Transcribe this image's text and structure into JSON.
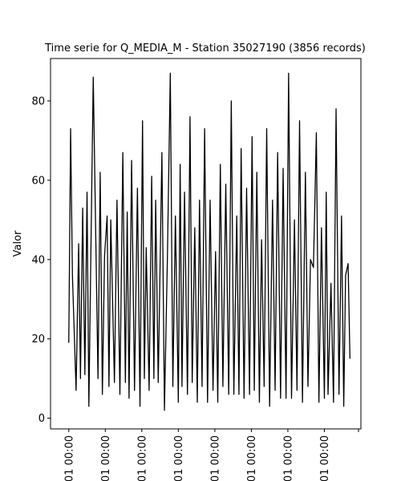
{
  "chart_data": {
    "type": "line",
    "title": "Time serie for Q_MEDIA_M - Station 35027190 (3856 records)",
    "xlabel": "",
    "ylabel": "Valor",
    "ylim": [
      -2.7,
      90.7
    ],
    "yticks": [
      0,
      20,
      40,
      60,
      80
    ],
    "xticks": [
      "01 00:00",
      "01 00:00",
      "01 00:00",
      "01 00:00",
      "01 00:00",
      "01 00:00",
      "01 00:00",
      "01 00:00"
    ],
    "xlim": [
      -0.5,
      8.0
    ],
    "grid": false,
    "series": [
      {
        "color": "#000000",
        "x": [
          0.0,
          0.05,
          0.1,
          0.2,
          0.27,
          0.32,
          0.38,
          0.44,
          0.5,
          0.55,
          0.6,
          0.67,
          0.8,
          0.86,
          0.92,
          0.98,
          1.05,
          1.1,
          1.15,
          1.25,
          1.32,
          1.4,
          1.48,
          1.55,
          1.6,
          1.65,
          1.72,
          1.8,
          1.88,
          1.95,
          2.02,
          2.07,
          2.12,
          2.2,
          2.27,
          2.33,
          2.38,
          2.45,
          2.55,
          2.62,
          2.7,
          2.78,
          2.85,
          2.92,
          3.0,
          3.05,
          3.1,
          3.17,
          3.25,
          3.32,
          3.38,
          3.45,
          3.52,
          3.58,
          3.65,
          3.72,
          3.8,
          3.87,
          3.95,
          4.02,
          4.08,
          4.15,
          4.22,
          4.3,
          4.38,
          4.45,
          4.52,
          4.6,
          4.66,
          4.72,
          4.8,
          4.87,
          4.95,
          5.02,
          5.08,
          5.15,
          5.22,
          5.28,
          5.35,
          5.42,
          5.5,
          5.58,
          5.65,
          5.72,
          5.8,
          5.87,
          5.95,
          6.02,
          6.1,
          6.18,
          6.25,
          6.32,
          6.4,
          6.48,
          6.55,
          6.62,
          6.7,
          6.78,
          6.85,
          6.92,
          7.0,
          7.05,
          7.1,
          7.18,
          7.25,
          7.32,
          7.4,
          7.47,
          7.53,
          7.58,
          7.65,
          7.7
        ],
        "y": [
          19,
          73,
          36,
          7,
          44,
          10,
          53,
          11,
          57,
          3,
          38,
          86,
          10,
          62,
          6,
          41,
          51,
          8,
          50,
          9,
          55,
          6,
          67,
          9,
          52,
          5,
          65,
          7,
          58,
          3,
          75,
          10,
          43,
          7,
          61,
          10,
          55,
          9,
          67,
          2,
          40,
          87,
          8,
          51,
          4,
          64,
          8,
          57,
          6,
          76,
          9,
          48,
          4,
          55,
          8,
          73,
          4,
          55,
          7,
          42,
          4,
          64,
          8,
          59,
          6,
          80,
          6,
          51,
          6,
          68,
          5,
          58,
          6,
          71,
          7,
          62,
          4,
          45,
          8,
          73,
          3,
          55,
          7,
          67,
          5,
          63,
          5,
          87,
          5,
          50,
          7,
          75,
          4,
          62,
          8,
          40,
          38,
          72,
          4,
          48,
          5,
          57,
          6,
          34,
          4,
          78,
          6,
          51,
          3,
          36,
          39,
          15
        ]
      }
    ]
  }
}
